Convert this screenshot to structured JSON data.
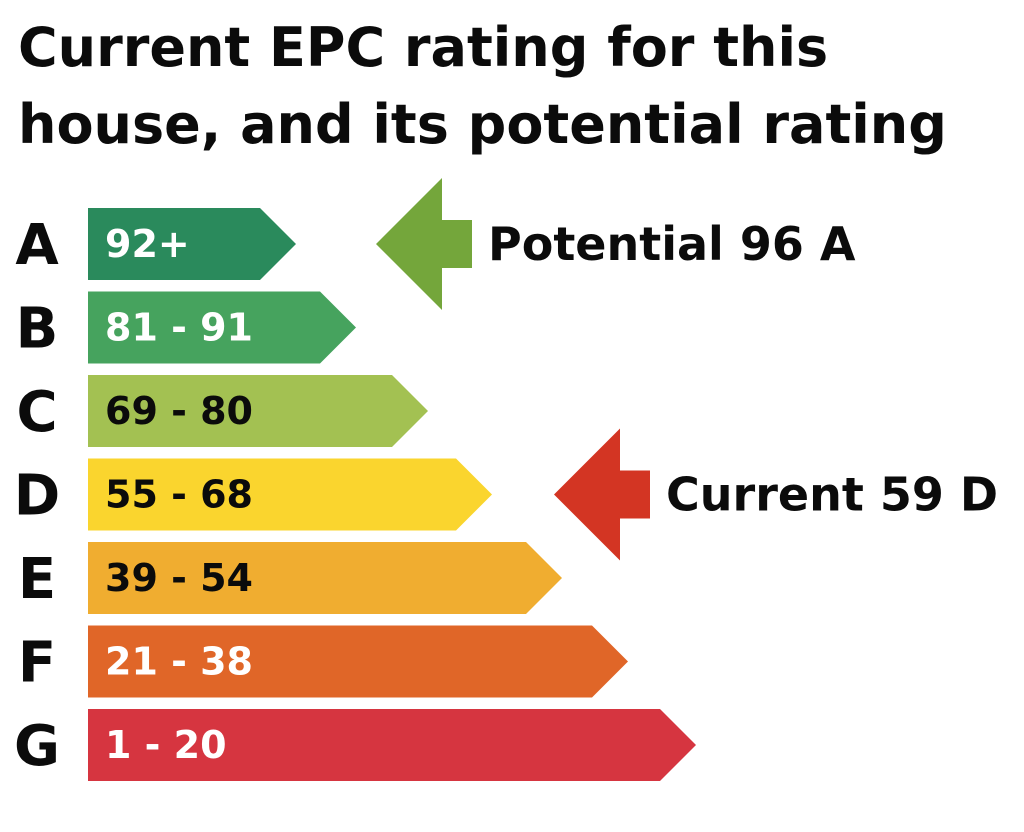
{
  "chart_data": {
    "type": "bar",
    "title_lines": [
      "Current EPC rating for this",
      "house, and its potential rating"
    ],
    "categories": [
      "A",
      "B",
      "C",
      "D",
      "E",
      "F",
      "G"
    ],
    "bands": [
      {
        "letter": "A",
        "range": "92+",
        "color": "#2a8a5c",
        "text_color": "#ffffff"
      },
      {
        "letter": "B",
        "range": "81 - 91",
        "color": "#46a35e",
        "text_color": "#ffffff"
      },
      {
        "letter": "C",
        "range": "69 - 80",
        "color": "#a3c152",
        "text_color": "#0b0b0b"
      },
      {
        "letter": "D",
        "range": "55 - 68",
        "color": "#fad52e",
        "text_color": "#0b0b0b"
      },
      {
        "letter": "E",
        "range": "39 - 54",
        "color": "#f0ad30",
        "text_color": "#0b0b0b"
      },
      {
        "letter": "F",
        "range": "21 - 38",
        "color": "#e06628",
        "text_color": "#ffffff"
      },
      {
        "letter": "G",
        "range": "1 - 20",
        "color": "#d63540",
        "text_color": "#ffffff"
      }
    ],
    "potential": {
      "label": "Potential 96 A",
      "score": 96,
      "band": "A",
      "color": "#74a63b"
    },
    "current": {
      "label": "Current 59 D",
      "score": 59,
      "band": "D",
      "color": "#d33523"
    }
  }
}
